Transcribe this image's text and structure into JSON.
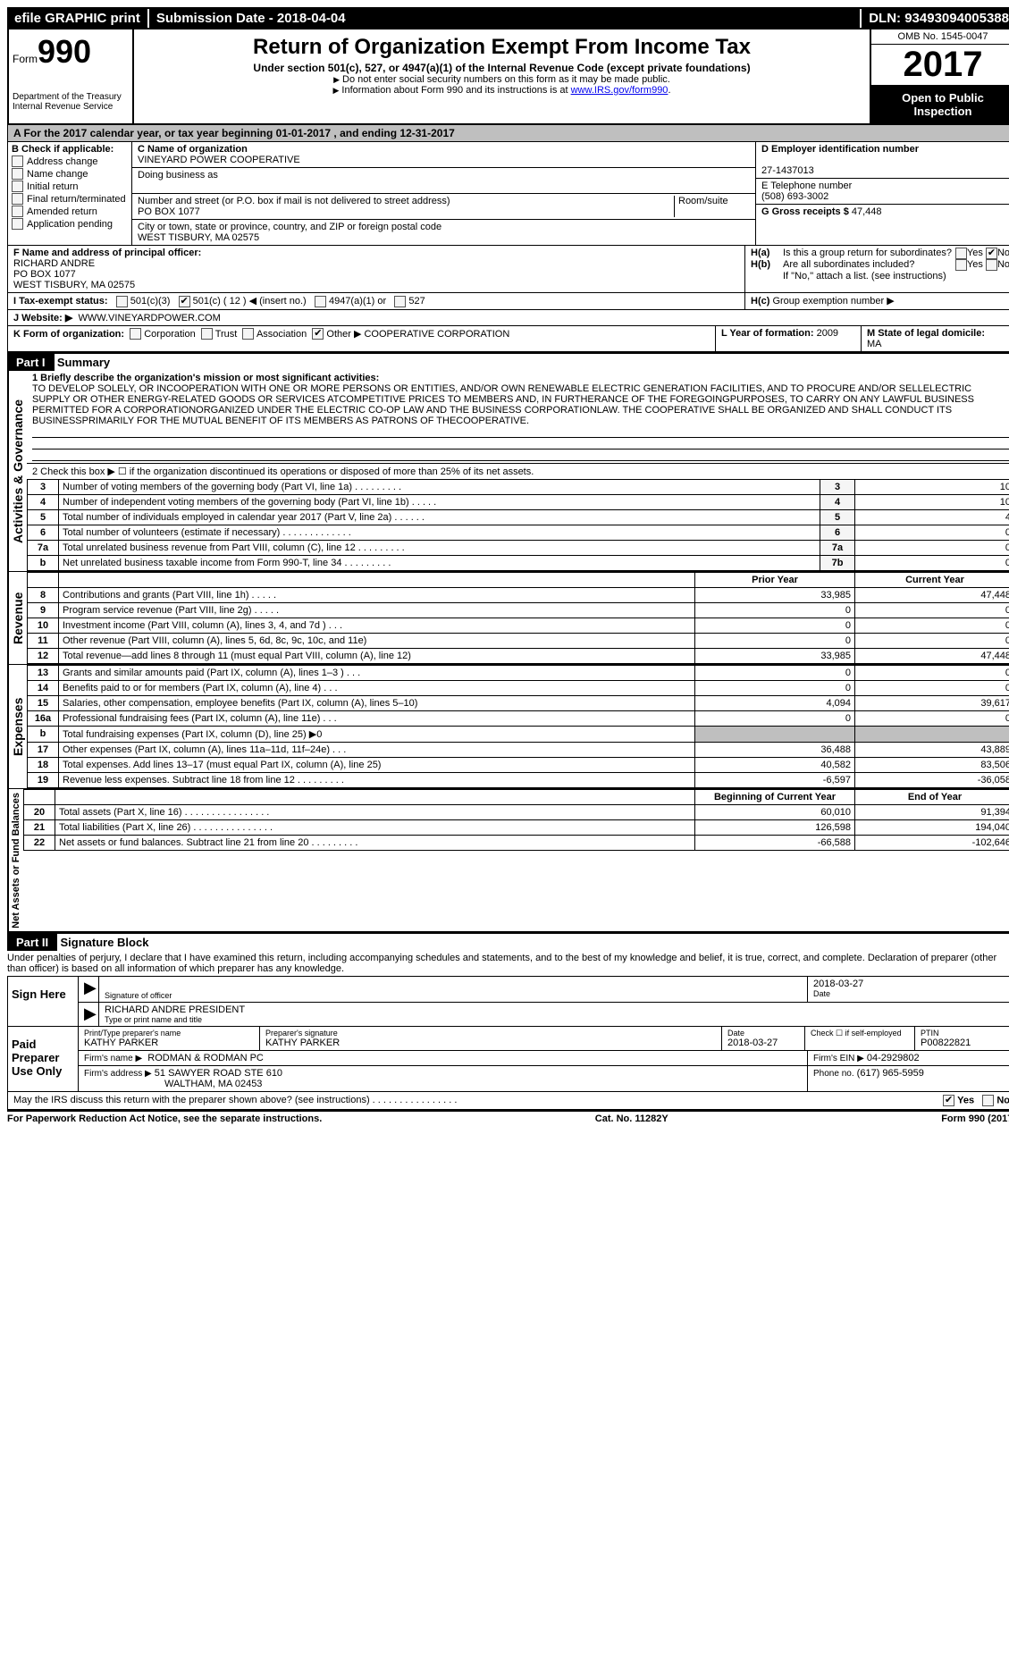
{
  "topbar": {
    "efile": "efile GRAPHIC print",
    "submission_label": "Submission Date - ",
    "submission_date": "2018-04-04",
    "dln_label": "DLN: ",
    "dln": "93493094005388"
  },
  "header": {
    "form_label": "Form",
    "form_number": "990",
    "dept1": "Department of the Treasury",
    "dept2": "Internal Revenue Service",
    "title": "Return of Organization Exempt From Income Tax",
    "subtitle": "Under section 501(c), 527, or 4947(a)(1) of the Internal Revenue Code (except private foundations)",
    "note1": "Do not enter social security numbers on this form as it may be made public.",
    "note2_pre": "Information about Form 990 and its instructions is at ",
    "note2_link": "www.IRS.gov/form990",
    "omb": "OMB No. 1545-0047",
    "year": "2017",
    "open": "Open to Public Inspection"
  },
  "section_a": {
    "text_pre": "A   For the 2017 calendar year, or tax year beginning ",
    "begin": "01-01-2017",
    "mid": "  , and ending ",
    "end": "12-31-2017"
  },
  "box_b": {
    "label": "B Check if applicable:",
    "items": [
      "Address change",
      "Name change",
      "Initial return",
      "Final return/terminated",
      "Amended return",
      "Application pending"
    ]
  },
  "box_c": {
    "name_label": "C Name of organization",
    "name": "VINEYARD POWER COOPERATIVE",
    "dba_label": "Doing business as",
    "dba": "",
    "street_label": "Number and street (or P.O. box if mail is not delivered to street address)",
    "room_label": "Room/suite",
    "street": "PO BOX 1077",
    "city_label": "City or town, state or province, country, and ZIP or foreign postal code",
    "city": "WEST TISBURY, MA  02575"
  },
  "box_d": {
    "label": "D Employer identification number",
    "value": "27-1437013"
  },
  "box_e": {
    "label": "E Telephone number",
    "value": "(508) 693-3002"
  },
  "box_g": {
    "label": "G Gross receipts $",
    "value": "47,448"
  },
  "box_f": {
    "label": "F  Name and address of principal officer:",
    "name": "RICHARD ANDRE",
    "addr1": "PO BOX 1077",
    "addr2": "WEST TISBURY, MA  02575"
  },
  "box_h": {
    "ha_label": "H(a)",
    "ha_text": "Is this a group return for subordinates?",
    "hb_label": "H(b)",
    "hb_text": "Are all subordinates included?",
    "hb_note": "If \"No,\" attach a list. (see instructions)",
    "hc_label": "H(c)",
    "hc_text": "Group exemption number ▶",
    "yes": "Yes",
    "no": "No"
  },
  "box_i": {
    "label": "I  Tax-exempt status:",
    "opt1": "501(c)(3)",
    "opt2": "501(c) ( 12 ) ◀ (insert no.)",
    "opt3": "4947(a)(1) or",
    "opt4": "527"
  },
  "box_j": {
    "label": "J  Website: ▶",
    "value": "WWW.VINEYARDPOWER.COM"
  },
  "box_k": {
    "label": "K Form of organization:",
    "opts": [
      "Corporation",
      "Trust",
      "Association",
      "Other ▶"
    ],
    "other": "COOPERATIVE CORPORATION"
  },
  "box_l": {
    "label": "L Year of formation:",
    "value": "2009"
  },
  "box_m": {
    "label": "M State of legal domicile:",
    "value": "MA"
  },
  "part1": {
    "header": "Part I",
    "title": "Summary",
    "mission_label": "1  Briefly describe the organization's mission or most significant activities:",
    "mission": "TO DEVELOP SOLELY, OR INCOOPERATION WITH ONE OR MORE PERSONS OR ENTITIES, AND/OR OWN RENEWABLE ELECTRIC GENERATION FACILITIES, AND TO PROCURE AND/OR SELLELECTRIC SUPPLY OR OTHER ENERGY-RELATED GOODS OR SERVICES ATCOMPETITIVE PRICES TO MEMBERS AND, IN FURTHERANCE OF THE FOREGOINGPURPOSES, TO CARRY ON ANY LAWFUL BUSINESS PERMITTED FOR A CORPORATIONORGANIZED UNDER THE ELECTRIC CO-OP LAW AND THE BUSINESS CORPORATIONLAW. THE COOPERATIVE SHALL BE ORGANIZED AND SHALL CONDUCT ITS BUSINESSPRIMARILY FOR THE MUTUAL BENEFIT OF ITS MEMBERS AS PATRONS OF THECOOPERATIVE.",
    "line2": "2   Check this box ▶ ☐  if the organization discontinued its operations or disposed of more than 25% of its net assets.",
    "tabs": {
      "activities": "Activities & Governance",
      "revenue": "Revenue",
      "expenses": "Expenses",
      "netassets": "Net Assets or Fund Balances"
    },
    "rows_gov": [
      {
        "n": "3",
        "desc": "Number of voting members of the governing body (Part VI, line 1a)   .    .    .    .    .    .    .    .    .",
        "box": "3",
        "val": "10"
      },
      {
        "n": "4",
        "desc": "Number of independent voting members of the governing body (Part VI, line 1b)    .    .    .    .    .",
        "box": "4",
        "val": "10"
      },
      {
        "n": "5",
        "desc": "Total number of individuals employed in calendar year 2017 (Part V, line 2a)   .    .    .    .    .    .",
        "box": "5",
        "val": "4"
      },
      {
        "n": "6",
        "desc": "Total number of volunteers (estimate if necessary)    .    .    .    .    .    .    .    .    .    .    .    .    .",
        "box": "6",
        "val": "0"
      },
      {
        "n": "7a",
        "desc": "Total unrelated business revenue from Part VIII, column (C), line 12  .    .    .    .    .    .    .    .    .",
        "box": "7a",
        "val": "0"
      },
      {
        "n": "b",
        "desc": "Net unrelated business taxable income from Form 990-T, line 34    .    .    .    .    .    .    .    .    .",
        "box": "7b",
        "val": "0"
      }
    ],
    "col_headers": {
      "prior": "Prior Year",
      "current": "Current Year"
    },
    "rows_rev": [
      {
        "n": "8",
        "desc": "Contributions and grants (Part VIII, line 1h)     .    .    .    .    .",
        "prior": "33,985",
        "curr": "47,448"
      },
      {
        "n": "9",
        "desc": "Program service revenue (Part VIII, line 2g)    .    .    .    .    .",
        "prior": "0",
        "curr": "0"
      },
      {
        "n": "10",
        "desc": "Investment income (Part VIII, column (A), lines 3, 4, and 7d )    .    .    .",
        "prior": "0",
        "curr": "0"
      },
      {
        "n": "11",
        "desc": "Other revenue (Part VIII, column (A), lines 5, 6d, 8c, 9c, 10c, and 11e)",
        "prior": "0",
        "curr": "0"
      },
      {
        "n": "12",
        "desc": "Total revenue—add lines 8 through 11 (must equal Part VIII, column (A), line 12)",
        "prior": "33,985",
        "curr": "47,448"
      }
    ],
    "rows_exp": [
      {
        "n": "13",
        "desc": "Grants and similar amounts paid (Part IX, column (A), lines 1–3 )    .    .    .",
        "prior": "0",
        "curr": "0"
      },
      {
        "n": "14",
        "desc": "Benefits paid to or for members (Part IX, column (A), line 4)    .    .    .",
        "prior": "0",
        "curr": "0"
      },
      {
        "n": "15",
        "desc": "Salaries, other compensation, employee benefits (Part IX, column (A), lines 5–10)",
        "prior": "4,094",
        "curr": "39,617"
      },
      {
        "n": "16a",
        "desc": "Professional fundraising fees (Part IX, column (A), line 11e)    .    .    .",
        "prior": "0",
        "curr": "0"
      },
      {
        "n": "b",
        "desc": "Total fundraising expenses (Part IX, column (D), line 25) ▶0",
        "prior": "",
        "curr": "",
        "grey": true
      },
      {
        "n": "17",
        "desc": "Other expenses (Part IX, column (A), lines 11a–11d, 11f–24e)    .    .    .",
        "prior": "36,488",
        "curr": "43,889"
      },
      {
        "n": "18",
        "desc": "Total expenses. Add lines 13–17 (must equal Part IX, column (A), line 25)",
        "prior": "40,582",
        "curr": "83,506"
      },
      {
        "n": "19",
        "desc": "Revenue less expenses. Subtract line 18 from line 12 .    .    .    .    .    .    .    .    .",
        "prior": "-6,597",
        "curr": "-36,058"
      }
    ],
    "col_headers2": {
      "begin": "Beginning of Current Year",
      "end": "End of Year"
    },
    "rows_net": [
      {
        "n": "20",
        "desc": "Total assets (Part X, line 16) .    .    .    .    .    .    .    .    .    .    .    .    .    .    .    .",
        "prior": "60,010",
        "curr": "91,394"
      },
      {
        "n": "21",
        "desc": "Total liabilities (Part X, line 26) .    .    .    .    .    .    .    .    .    .    .    .    .    .    .",
        "prior": "126,598",
        "curr": "194,040"
      },
      {
        "n": "22",
        "desc": "Net assets or fund balances. Subtract line 21 from line 20 .    .    .    .    .    .    .    .    .",
        "prior": "-66,588",
        "curr": "-102,646"
      }
    ]
  },
  "part2": {
    "header": "Part II",
    "title": "Signature Block",
    "declaration": "Under penalties of perjury, I declare that I have examined this return, including accompanying schedules and statements, and to the best of my knowledge and belief, it is true, correct, and complete. Declaration of preparer (other than officer) is based on all information of which preparer has any knowledge.",
    "sign_here": "Sign Here",
    "sig_officer_label": "Signature of officer",
    "sig_date": "2018-03-27",
    "date_label": "Date",
    "officer_name": "RICHARD ANDRE PRESIDENT",
    "officer_name_label": "Type or print name and title",
    "paid": "Paid Preparer Use Only",
    "prep_name_label": "Print/Type preparer's name",
    "prep_name": "KATHY PARKER",
    "prep_sig_label": "Preparer's signature",
    "prep_sig": "KATHY PARKER",
    "prep_date_label": "Date",
    "prep_date": "2018-03-27",
    "self_emp": "Check ☐ if self-employed",
    "ptin_label": "PTIN",
    "ptin": "P00822821",
    "firm_name_label": "Firm's name    ▶",
    "firm_name": "RODMAN & RODMAN PC",
    "firm_ein_label": "Firm's EIN ▶",
    "firm_ein": "04-2929802",
    "firm_addr_label": "Firm's address ▶",
    "firm_addr1": "51 SAWYER ROAD STE 610",
    "firm_addr2": "WALTHAM, MA  02453",
    "firm_phone_label": "Phone no.",
    "firm_phone": "(617) 965-5959"
  },
  "discuss": {
    "text": "May the IRS discuss this return with the preparer shown above? (see instructions)    .    .    .    .    .    .    .    .    .    .    .    .    .    .    .    .",
    "yes": "Yes",
    "no": "No"
  },
  "footer": {
    "left": "For Paperwork Reduction Act Notice, see the separate instructions.",
    "mid": "Cat. No. 11282Y",
    "right": "Form 990 (2017)"
  }
}
